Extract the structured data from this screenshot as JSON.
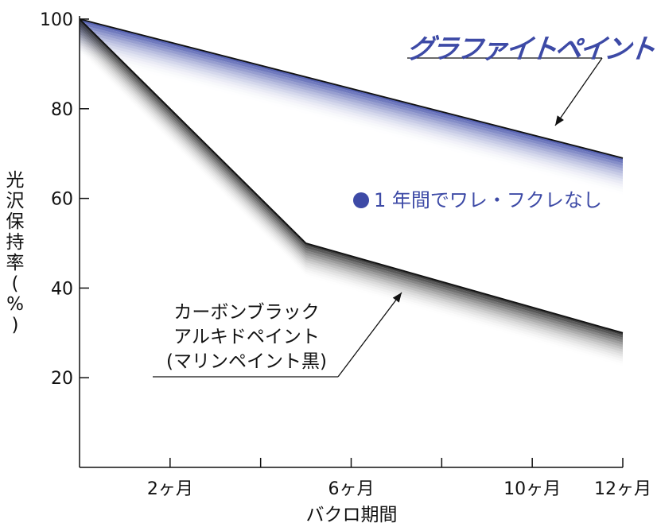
{
  "chart_data": {
    "type": "line",
    "xlabel": "バクロ期間",
    "ylabel": "光沢保持率(%)",
    "ylabel_chars": [
      "光",
      "沢",
      "保",
      "持",
      "率",
      "(",
      "%",
      ")"
    ],
    "xlim": [
      0,
      12
    ],
    "ylim": [
      0,
      100
    ],
    "y_ticks": [
      20,
      40,
      60,
      80,
      100
    ],
    "x_ticks": [
      {
        "x": 2,
        "label": "2ヶ月"
      },
      {
        "x": 4,
        "label": ""
      },
      {
        "x": 6,
        "label": "6ヶ月"
      },
      {
        "x": 8,
        "label": ""
      },
      {
        "x": 10,
        "label": "10ヶ月"
      },
      {
        "x": 12,
        "label": "12ヶ月"
      }
    ],
    "series": [
      {
        "name": "グラファイトペイント",
        "color": "#3d4aa6",
        "x": [
          0,
          12
        ],
        "y": [
          100,
          69
        ]
      },
      {
        "name_lines": [
          "カーボンブラック",
          "アルキドペイント",
          "(マリンペイント黒)"
        ],
        "color": "#222222",
        "x": [
          0,
          5,
          12
        ],
        "y": [
          100,
          50,
          30
        ]
      }
    ],
    "annotation": "1 年間でワレ・フクレなし",
    "grid": false,
    "legend": "none"
  }
}
